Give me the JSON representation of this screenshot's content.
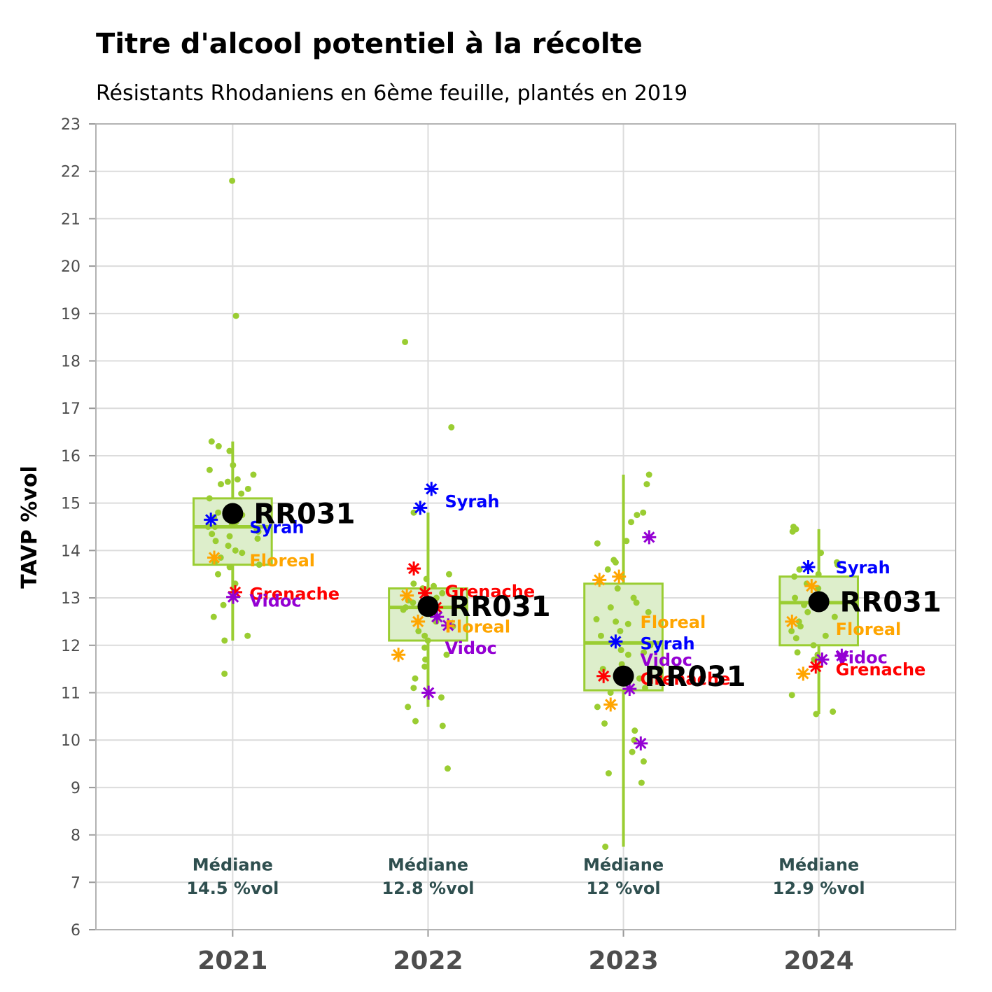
{
  "chart_data": {
    "type": "boxplot",
    "title": "Titre d'alcool potentiel à la récolte",
    "subtitle": "Résistants Rhodaniens en 6ème feuille, plantés en 2019",
    "ylabel": "TAVP %vol",
    "xlabel": "",
    "ylim": [
      6,
      23
    ],
    "yticks": [
      6,
      7,
      8,
      9,
      10,
      11,
      12,
      13,
      14,
      15,
      16,
      17,
      18,
      19,
      20,
      21,
      22,
      23
    ],
    "categories": [
      "2021",
      "2022",
      "2023",
      "2024"
    ],
    "grid": true,
    "colors": {
      "box": "#9acd32",
      "box_fill": "#ddeecb",
      "points": "#9acd32",
      "highlight": "#000000",
      "Syrah": "#0000ff",
      "Floreal": "#ffa500",
      "Grenache": "#ff0000",
      "Vidoc": "#9400d3",
      "median_note": "#2f4f4f"
    },
    "highlight_label": "RR031",
    "boxes": [
      {
        "year": "2021",
        "q1": 13.7,
        "median": 14.5,
        "q3": 15.1,
        "whisker_low": 12.1,
        "whisker_high": 16.3
      },
      {
        "year": "2022",
        "q1": 12.1,
        "median": 12.8,
        "q3": 13.2,
        "whisker_low": 10.7,
        "whisker_high": 14.8
      },
      {
        "year": "2023",
        "q1": 11.05,
        "median": 12.05,
        "q3": 13.3,
        "whisker_low": 7.75,
        "whisker_high": 15.6
      },
      {
        "year": "2024",
        "q1": 12.0,
        "median": 12.9,
        "q3": 13.45,
        "whisker_low": 10.55,
        "whisker_high": 14.45
      }
    ],
    "jitter_points": [
      [
        21.8,
        18.95,
        16.3,
        16.2,
        16.1,
        15.8,
        15.7,
        15.6,
        15.5,
        15.45,
        15.4,
        15.3,
        15.2,
        15.1,
        14.9,
        14.8,
        14.75,
        14.7,
        14.6,
        14.55,
        14.5,
        14.5,
        14.45,
        14.4,
        14.35,
        14.3,
        14.25,
        14.2,
        14.1,
        14.0,
        13.95,
        13.85,
        13.75,
        13.7,
        13.65,
        13.5,
        13.3,
        12.85,
        12.6,
        12.2,
        12.1,
        11.4
      ],
      [
        18.4,
        16.6,
        14.8,
        13.5,
        13.4,
        13.3,
        13.25,
        13.2,
        13.1,
        13.0,
        12.95,
        12.9,
        12.85,
        12.8,
        12.75,
        12.7,
        12.6,
        12.5,
        12.4,
        12.3,
        12.2,
        12.1,
        11.95,
        11.8,
        11.7,
        11.55,
        11.3,
        11.1,
        10.9,
        10.7,
        10.4,
        10.3,
        9.4
      ],
      [
        15.6,
        15.4,
        14.8,
        14.75,
        14.6,
        14.2,
        14.15,
        13.8,
        13.75,
        13.6,
        13.2,
        13.0,
        12.9,
        12.8,
        12.7,
        12.55,
        12.5,
        12.45,
        12.3,
        12.2,
        12.0,
        11.9,
        11.85,
        11.8,
        11.6,
        11.5,
        11.3,
        11.1,
        11.0,
        10.7,
        10.35,
        10.2,
        10.0,
        9.75,
        9.55,
        9.3,
        9.1,
        7.75
      ],
      [
        14.5,
        14.45,
        14.4,
        13.95,
        13.75,
        13.7,
        13.6,
        13.5,
        13.45,
        13.3,
        13.2,
        13.0,
        12.9,
        12.85,
        12.7,
        12.6,
        12.5,
        12.4,
        12.3,
        12.2,
        12.15,
        12.0,
        11.85,
        11.8,
        11.7,
        10.95,
        10.6,
        10.55
      ]
    ],
    "references": [
      {
        "year": "2021",
        "variety": "Syrah",
        "value": 14.65
      },
      {
        "year": "2021",
        "variety": "Floreal",
        "value": 13.85
      },
      {
        "year": "2021",
        "variety": "Grenache",
        "value": 13.12
      },
      {
        "year": "2021",
        "variety": "Vidoc",
        "value": 13.02
      },
      {
        "year": "2022",
        "variety": "Syrah",
        "value": 14.9
      },
      {
        "year": "2022",
        "variety": "Syrah",
        "value": 15.3
      },
      {
        "year": "2022",
        "variety": "Grenache",
        "value": 13.62
      },
      {
        "year": "2022",
        "variety": "Grenache",
        "value": 13.1
      },
      {
        "year": "2022",
        "variety": "Grenache",
        "value": 12.8
      },
      {
        "year": "2022",
        "variety": "Floreal",
        "value": 13.05
      },
      {
        "year": "2022",
        "variety": "Floreal",
        "value": 12.5
      },
      {
        "year": "2022",
        "variety": "Floreal",
        "value": 11.8
      },
      {
        "year": "2022",
        "variety": "Vidoc",
        "value": 12.6
      },
      {
        "year": "2022",
        "variety": "Vidoc",
        "value": 12.42
      },
      {
        "year": "2022",
        "variety": "Vidoc",
        "value": 11.0
      },
      {
        "year": "2023",
        "variety": "Syrah",
        "value": 12.08
      },
      {
        "year": "2023",
        "variety": "Floreal",
        "value": 13.45
      },
      {
        "year": "2023",
        "variety": "Floreal",
        "value": 13.38
      },
      {
        "year": "2023",
        "variety": "Floreal",
        "value": 10.75
      },
      {
        "year": "2023",
        "variety": "Vidoc",
        "value": 14.28
      },
      {
        "year": "2023",
        "variety": "Vidoc",
        "value": 11.08
      },
      {
        "year": "2023",
        "variety": "Vidoc",
        "value": 9.93
      },
      {
        "year": "2023",
        "variety": "Grenache",
        "value": 11.35
      },
      {
        "year": "2024",
        "variety": "Syrah",
        "value": 13.65
      },
      {
        "year": "2024",
        "variety": "Floreal",
        "value": 13.25
      },
      {
        "year": "2024",
        "variety": "Floreal",
        "value": 12.5
      },
      {
        "year": "2024",
        "variety": "Floreal",
        "value": 11.4
      },
      {
        "year": "2024",
        "variety": "Vidoc",
        "value": 11.78
      },
      {
        "year": "2024",
        "variety": "Vidoc",
        "value": 11.7
      },
      {
        "year": "2024",
        "variety": "Grenache",
        "value": 11.55
      }
    ],
    "reference_labels": [
      {
        "year": "2021",
        "text": "Syrah",
        "variety": "Syrah",
        "value": 14.5
      },
      {
        "year": "2021",
        "text": "Floreal",
        "variety": "Floreal",
        "value": 13.8
      },
      {
        "year": "2021",
        "text": "Grenache",
        "variety": "Grenache",
        "value": 13.1
      },
      {
        "year": "2021",
        "text": "Vidoc",
        "variety": "Vidoc",
        "value": 12.95
      },
      {
        "year": "2022",
        "text": "Syrah",
        "variety": "Syrah",
        "value": 15.05
      },
      {
        "year": "2022",
        "text": "Grenache",
        "variety": "Grenache",
        "value": 13.15
      },
      {
        "year": "2022",
        "text": "Floreal",
        "variety": "Floreal",
        "value": 12.4
      },
      {
        "year": "2022",
        "text": "Vidoc",
        "variety": "Vidoc",
        "value": 11.95
      },
      {
        "year": "2023",
        "text": "Floreal",
        "variety": "Floreal",
        "value": 12.5
      },
      {
        "year": "2023",
        "text": "Syrah",
        "variety": "Syrah",
        "value": 12.05
      },
      {
        "year": "2023",
        "text": "Vidoc",
        "variety": "Vidoc",
        "value": 11.7
      },
      {
        "year": "2023",
        "text": "Grenache",
        "variety": "Grenache",
        "value": 11.3
      },
      {
        "year": "2024",
        "text": "Syrah",
        "variety": "Syrah",
        "value": 13.65
      },
      {
        "year": "2024",
        "text": "Floreal",
        "variety": "Floreal",
        "value": 12.35
      },
      {
        "year": "2024",
        "text": "Vidoc",
        "variety": "Vidoc",
        "value": 11.75
      },
      {
        "year": "2024",
        "text": "Grenache",
        "variety": "Grenache",
        "value": 11.5
      }
    ],
    "highlight_points": [
      {
        "year": "2021",
        "value": 14.78,
        "label": "RR031"
      },
      {
        "year": "2022",
        "value": 12.82,
        "label": "RR031"
      },
      {
        "year": "2023",
        "value": 11.35,
        "label": "RR031"
      },
      {
        "year": "2024",
        "value": 12.92,
        "label": "RR031"
      }
    ],
    "median_notes": [
      {
        "year": "2021",
        "line1": "Médiane",
        "line2": "14.5 %vol"
      },
      {
        "year": "2022",
        "line1": "Médiane",
        "line2": "12.8 %vol"
      },
      {
        "year": "2023",
        "line1": "Médiane",
        "line2": "12 %vol"
      },
      {
        "year": "2024",
        "line1": "Médiane",
        "line2": "12.9 %vol"
      }
    ]
  }
}
